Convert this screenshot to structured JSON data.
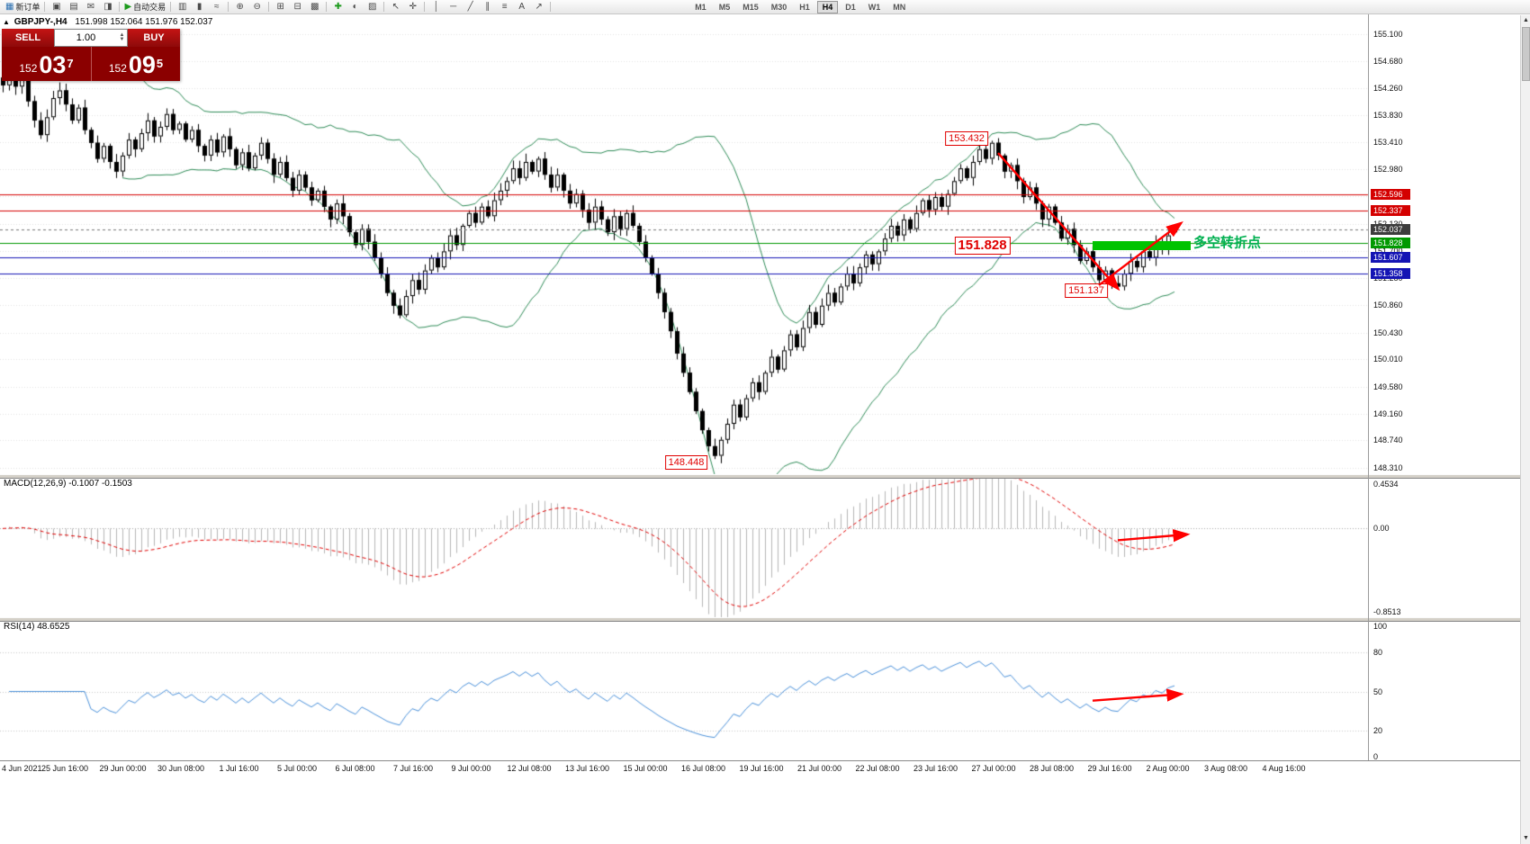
{
  "colors": {
    "bull": "#ffffff",
    "bear": "#000000",
    "outline": "#000000",
    "bband": "#2E8B57",
    "bid_line": "#777777",
    "macd_hist": "#b6b6b6",
    "macd_signal": "#e00000",
    "rsi_line": "#4a90d9",
    "arrow": "#ff0000",
    "zone": "#00c300",
    "cn_green": "#00b050",
    "tag_current_bg": "#3c3c3c",
    "grid": "#e3e3e3"
  },
  "toolbar": {
    "items": [
      {
        "name": "new-order-icon",
        "glyph": "▦",
        "label": "新订单",
        "color": "#2a6fb0"
      },
      {
        "sep": true
      },
      {
        "name": "chart-window-icon",
        "glyph": "▣"
      },
      {
        "name": "profiles-icon",
        "glyph": "▤"
      },
      {
        "name": "mail-icon",
        "glyph": "✉"
      },
      {
        "name": "market-watch-icon",
        "glyph": "◨"
      },
      {
        "sep": true
      },
      {
        "name": "autotrading-icon",
        "glyph": "▶",
        "label": "自动交易",
        "color": "#1d9a1d"
      },
      {
        "sep": true
      },
      {
        "name": "bar-chart-icon",
        "glyph": "▥"
      },
      {
        "name": "candlestick-chart-icon",
        "glyph": "▮"
      },
      {
        "name": "line-chart-icon",
        "glyph": "≈"
      },
      {
        "sep": true
      },
      {
        "name": "zoom-in-icon",
        "glyph": "⊕"
      },
      {
        "name": "zoom-out-icon",
        "glyph": "⊖"
      },
      {
        "sep": true
      },
      {
        "name": "tile-windows-icon",
        "glyph": "⊞"
      },
      {
        "name": "auto-arrange-icon",
        "glyph": "⊟"
      },
      {
        "name": "grid-icon",
        "glyph": "▩"
      },
      {
        "sep": true
      },
      {
        "name": "indicators-icon",
        "glyph": "✚",
        "color": "#1d9a1d"
      },
      {
        "name": "periods-icon",
        "glyph": "◐"
      },
      {
        "name": "templates-icon",
        "glyph": "▨"
      },
      {
        "sep": true
      },
      {
        "name": "cursor-icon",
        "glyph": "↖"
      },
      {
        "name": "crosshair-icon",
        "glyph": "✛"
      },
      {
        "sep": true
      },
      {
        "name": "vertical-line-icon",
        "glyph": "│"
      },
      {
        "name": "horizontal-line-icon",
        "glyph": "─"
      },
      {
        "name": "trendline-icon",
        "glyph": "╱"
      },
      {
        "name": "equidistant-channel-icon",
        "glyph": "∥"
      },
      {
        "name": "fibonacci-icon",
        "glyph": "≡"
      },
      {
        "name": "text-label-icon",
        "glyph": "A"
      },
      {
        "name": "arrows-tool-icon",
        "glyph": "↗"
      },
      {
        "sep": true
      }
    ],
    "timeframes": [
      "M1",
      "M5",
      "M15",
      "M30",
      "H1",
      "H4",
      "D1",
      "W1",
      "MN"
    ],
    "active_timeframe": "H4",
    "overflow_icon": "▾",
    "scroll_up_icon": "▲",
    "scroll_down_icon": "▼"
  },
  "chart_header": {
    "collapse_icon": "▲",
    "title": "GBPJPY-,H4",
    "ohlc": "151.998 152.064 151.976 152.037"
  },
  "trade_panel": {
    "sell_label": "SELL",
    "buy_label": "BUY",
    "volume": "1.00",
    "sell_price": {
      "prefix": "152",
      "big": "03",
      "sup": "7"
    },
    "buy_price": {
      "prefix": "152",
      "big": "09",
      "sup": "5"
    }
  },
  "macd_panel": {
    "label": "MACD(12,26,9) -0.1007 -0.1503",
    "scale": [
      {
        "t": "0.4534",
        "v": 0.4534
      },
      {
        "t": "0.00",
        "v": 0
      },
      {
        "t": "-0.8513",
        "v": -0.8513
      }
    ]
  },
  "rsi_panel": {
    "label": "RSI(14) 48.6525",
    "scale": [
      {
        "t": "100",
        "v": 100
      },
      {
        "t": "80",
        "v": 80
      },
      {
        "t": "50",
        "v": 50
      },
      {
        "t": "20",
        "v": 20
      },
      {
        "t": "0",
        "v": 0
      }
    ]
  },
  "time_axis": {
    "labels": [
      "4 Jun 2021",
      "25 Jun 16:00",
      "29 Jun 00:00",
      "30 Jun 08:00",
      "1 Jul 16:00",
      "5 Jul 00:00",
      "6 Jul 08:00",
      "7 Jul 16:00",
      "9 Jul 00:00",
      "12 Jul 08:00",
      "13 Jul 16:00",
      "15 Jul 00:00",
      "16 Jul 08:00",
      "19 Jul 16:00",
      "21 Jul 00:00",
      "22 Jul 08:00",
      "23 Jul 16:00",
      "27 Jul 00:00",
      "28 Jul 08:00",
      "29 Jul 16:00",
      "2 Aug 00:00",
      "3 Aug 08:00",
      "4 Aug 16:00"
    ]
  },
  "annotations": {
    "labels": [
      {
        "text": "153.432",
        "i": 153,
        "price": 153.47,
        "large": false
      },
      {
        "text": "151.828",
        "i": 155.5,
        "price": 151.79,
        "large": true
      },
      {
        "text": "151.137",
        "i": 172,
        "price": 151.09,
        "large": false
      },
      {
        "text": "148.448",
        "i": 108.5,
        "price": 148.4,
        "large": false
      }
    ],
    "note": {
      "text": "多空转折点",
      "i": 189,
      "price": 151.84
    },
    "zone": {
      "i1": 173,
      "i2": 188.5,
      "p1": 151.86,
      "p2": 151.72
    },
    "arrows_price": [
      {
        "i1": 158,
        "p1": 153.24,
        "i2": 177,
        "p2": 151.12
      },
      {
        "i1": 174,
        "p1": 151.17,
        "i2": 187,
        "p2": 152.14
      }
    ],
    "arrow_macd": {
      "i1": 177,
      "v1": -0.12,
      "i2": 188,
      "v2": -0.06
    },
    "arrow_rsi": {
      "i1": 173,
      "v1": 43,
      "i2": 187,
      "v2": 48
    }
  },
  "chart_data": {
    "type": "candlestick",
    "symbol": "GBPJPY-",
    "timeframe": "H4",
    "title": "GBPJPY- H4 with Bollinger Bands, MACD(12,26,9), RSI(14)",
    "ohlc_current": {
      "open": 151.998,
      "high": 152.064,
      "low": 151.976,
      "close": 152.037
    },
    "bid": 152.037,
    "price_range": [
      148.31,
      155.1
    ],
    "price_axis_ticks": [
      "155.100",
      "154.680",
      "154.260",
      "153.830",
      "153.410",
      "152.980",
      "152.560",
      "152.130",
      "151.700",
      "151.280",
      "150.860",
      "150.430",
      "150.010",
      "149.580",
      "149.160",
      "148.740",
      "148.310"
    ],
    "bollinger": {
      "period": 20,
      "deviation": 2
    },
    "macd": {
      "fast": 12,
      "slow": 26,
      "signal": 9,
      "value": -0.1007,
      "signal_value": -0.1503,
      "scale_max": 0.4534,
      "scale_min": -0.8513
    },
    "rsi": {
      "period": 14,
      "value": 48.6525
    },
    "hlines": [
      {
        "price": 152.596,
        "label": "152.596",
        "color": "#d40000"
      },
      {
        "price": 152.337,
        "label": "152.337",
        "color": "#d40000"
      },
      {
        "price": 151.828,
        "label": "151.828",
        "color": "#009900"
      },
      {
        "price": 151.607,
        "label": "151.607",
        "color": "#1414b4"
      },
      {
        "price": 151.358,
        "label": "151.358",
        "color": "#1414b4"
      }
    ],
    "key_points": {
      "swing_high": 153.432,
      "pullback_low": 151.137,
      "major_low": 148.448,
      "pivot_level": 151.828
    },
    "closes": [
      154.3,
      154.52,
      154.28,
      154.4,
      154.05,
      153.75,
      153.52,
      153.8,
      154.1,
      154.22,
      154.0,
      153.75,
      153.95,
      153.6,
      153.4,
      153.15,
      153.35,
      153.1,
      152.95,
      153.2,
      153.45,
      153.3,
      153.55,
      153.75,
      153.5,
      153.65,
      153.85,
      153.6,
      153.7,
      153.45,
      153.6,
      153.35,
      153.2,
      153.45,
      153.25,
      153.5,
      153.3,
      153.05,
      153.25,
      153.0,
      153.2,
      153.4,
      153.15,
      152.9,
      153.1,
      152.85,
      152.65,
      152.9,
      152.7,
      152.5,
      152.65,
      152.4,
      152.2,
      152.45,
      152.25,
      152.0,
      151.8,
      152.05,
      151.85,
      151.6,
      151.35,
      151.05,
      150.85,
      150.7,
      151.0,
      151.25,
      151.1,
      151.4,
      151.6,
      151.45,
      151.7,
      151.95,
      151.8,
      152.1,
      152.3,
      152.15,
      152.4,
      152.25,
      152.5,
      152.65,
      152.8,
      153.0,
      152.85,
      153.1,
      152.95,
      153.15,
      152.9,
      152.7,
      152.9,
      152.65,
      152.45,
      152.6,
      152.35,
      152.15,
      152.4,
      152.2,
      152.0,
      152.25,
      152.05,
      152.3,
      152.1,
      151.85,
      151.6,
      151.35,
      151.05,
      150.75,
      150.45,
      150.1,
      149.8,
      149.5,
      149.2,
      148.9,
      148.65,
      148.5,
      148.75,
      149.0,
      149.3,
      149.1,
      149.4,
      149.65,
      149.5,
      149.8,
      150.05,
      149.85,
      150.15,
      150.4,
      150.2,
      150.5,
      150.75,
      150.55,
      150.85,
      151.05,
      150.9,
      151.15,
      151.35,
      151.2,
      151.45,
      151.65,
      151.5,
      151.7,
      151.9,
      152.1,
      151.95,
      152.2,
      152.05,
      152.3,
      152.5,
      152.35,
      152.55,
      152.4,
      152.6,
      152.8,
      153.0,
      152.85,
      153.1,
      153.3,
      153.15,
      153.4,
      153.2,
      152.95,
      153.05,
      152.8,
      152.55,
      152.7,
      152.45,
      152.2,
      152.4,
      152.15,
      151.9,
      152.05,
      151.8,
      151.55,
      151.7,
      151.45,
      151.25,
      151.4,
      151.2,
      151.15,
      151.35,
      151.55,
      151.45,
      151.7,
      151.6,
      151.85,
      151.75,
      151.95,
      152.037
    ],
    "overrides": {
      "113": {
        "low": 148.448
      },
      "157": {
        "high": 153.432
      },
      "177": {
        "low": 151.137
      },
      "186": {
        "open": 151.998,
        "high": 152.064,
        "low": 151.976,
        "close": 152.037
      }
    }
  }
}
